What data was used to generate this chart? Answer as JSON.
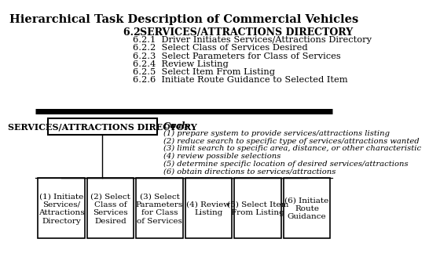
{
  "title": "Hierarchical Task Description of Commercial Vehicles",
  "section_header_num": "6.2  ",
  "section_header_text": "SERVICES/ATTRACTIONS DIRECTORY",
  "items": [
    "6.2.1  Driver Initiates Services/Attractions Directory",
    "6.2.2  Select Class of Services Desired",
    "6.2.3  Select Parameters for Class of Services",
    "6.2.4  Review Listing",
    "6.2.5  Select Item From Listing",
    "6.2.6  Initiate Route Guidance to Selected Item"
  ],
  "box_top_label": "SERVICES/ATTRACTIONS DIRECTORY",
  "goals_label": "Goals",
  "goals": [
    "(1) prepare system to provide services/attractions listing",
    "(2) reduce search to specific type of services/attractions wanted",
    "(3) limit search to specific area, distance, or other characteristic",
    "(4) review possible selections",
    "(5) determine specific location of desired services/attractions",
    "(6) obtain directions to services/attractions"
  ],
  "bottom_boxes": [
    "(1) Initiate\nServices/\nAttractions\nDirectory",
    "(2) Select\nClass of\nServices\nDesired",
    "(3) Select\nParameters\nfor Class\nof Services",
    "(4) Review\nListing",
    "(5) Select Item\nFrom Listing",
    "(6) Initiate\nRoute\nGuidance"
  ],
  "bg_color": "#ffffff",
  "text_color": "#000000",
  "box_color": "#ffffff",
  "box_edge_color": "#000000"
}
